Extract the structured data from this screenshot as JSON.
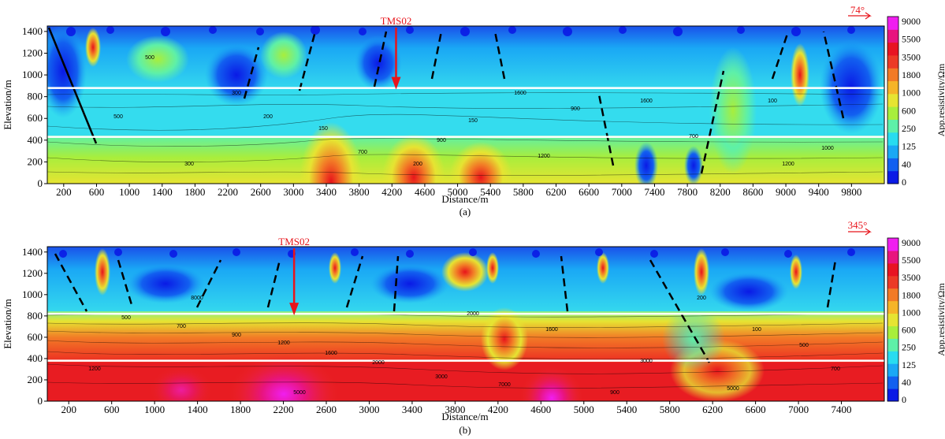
{
  "colors": {
    "scale": [
      "#0a1ae6",
      "#1260f0",
      "#1aa8f5",
      "#28dcf0",
      "#5ef0a8",
      "#a8ee3c",
      "#e6e432",
      "#f5b428",
      "#f27a26",
      "#ec3a26",
      "#e81422",
      "#e8147e",
      "#f01ef0"
    ],
    "marker": "#e8141b",
    "band": "#ffffff"
  },
  "chart_data": [
    {
      "type": "heatmap",
      "panel": "a",
      "caption": "(a)",
      "xlabel": "Distance/m",
      "ylabel": "Elevation/m",
      "xlim": [
        0,
        10200
      ],
      "ylim": [
        0,
        1450
      ],
      "xticks": [
        200,
        600,
        1000,
        1400,
        1800,
        2200,
        2600,
        3000,
        3400,
        3800,
        4200,
        4600,
        5000,
        5400,
        5800,
        6200,
        6600,
        7000,
        7400,
        7800,
        8200,
        8600,
        9000,
        9400,
        9800
      ],
      "yticks": [
        0,
        200,
        400,
        600,
        800,
        1000,
        1200,
        1400
      ],
      "station": {
        "label": "TMS02",
        "x": 4250
      },
      "azimuth": "74°",
      "bands_elevation": [
        880,
        430
      ],
      "colorbar_label": "App.resistivity/Ωm",
      "colorbar_ticks": [
        "9000",
        "5500",
        "3500",
        "1800",
        "1000",
        "600",
        "250",
        "125",
        "40",
        "0"
      ],
      "contour_labels": [
        "500",
        "300",
        "200",
        "150",
        "700",
        "900",
        "1200",
        "1600",
        "100",
        "1000"
      ]
    },
    {
      "type": "heatmap",
      "panel": "b",
      "caption": "(b)",
      "xlabel": "Distance/m",
      "ylabel": "Elevation/m",
      "xlim": [
        0,
        7800
      ],
      "ylim": [
        0,
        1450
      ],
      "xticks": [
        200,
        600,
        1000,
        1400,
        1800,
        2200,
        2600,
        3000,
        3400,
        3800,
        4200,
        4600,
        5000,
        5400,
        5800,
        6200,
        6600,
        7000,
        7400
      ],
      "yticks": [
        0,
        200,
        400,
        600,
        800,
        1000,
        1200,
        1400
      ],
      "station": {
        "label": "TMS02",
        "x": 2300
      },
      "azimuth": "345°",
      "bands_elevation": [
        820,
        380
      ],
      "colorbar_label": "App.resistivity/Ωm",
      "colorbar_ticks": [
        "9000",
        "5500",
        "3500",
        "1800",
        "1000",
        "600",
        "250",
        "125",
        "40",
        "0"
      ],
      "contour_labels": [
        "500",
        "700",
        "900",
        "1200",
        "1600",
        "2000",
        "3000",
        "5000",
        "7000",
        "8000",
        "200",
        "100"
      ]
    }
  ]
}
